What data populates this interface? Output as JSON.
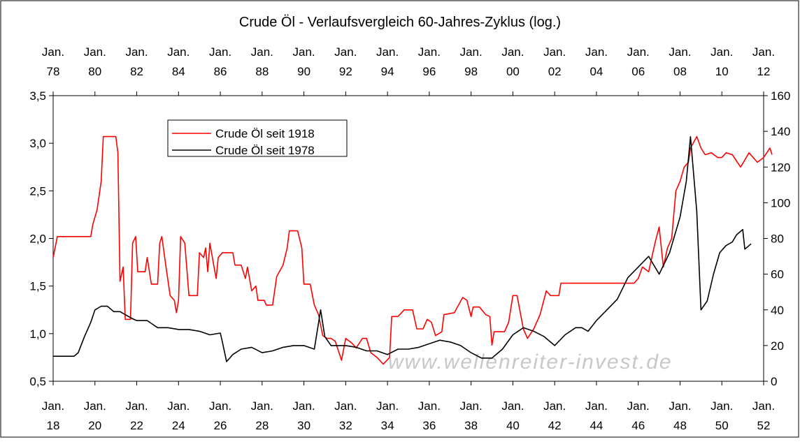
{
  "chart_data": {
    "type": "line",
    "title": "Crude Öl - Verlaufsvergleich 60-Jahres-Zyklus (log.)",
    "watermark": "www.wellenreiter-invest.de",
    "xlim": [
      1918,
      1952
    ],
    "xticks": [
      {
        "value": 1918,
        "label": "Jan. 18"
      },
      {
        "value": 1920,
        "label": "Jan. 20"
      },
      {
        "value": 1922,
        "label": "Jan. 22"
      },
      {
        "value": 1924,
        "label": "Jan. 24"
      },
      {
        "value": 1926,
        "label": "Jan. 26"
      },
      {
        "value": 1928,
        "label": "Jan. 28"
      },
      {
        "value": 1930,
        "label": "Jan. 30"
      },
      {
        "value": 1932,
        "label": "Jan. 32"
      },
      {
        "value": 1934,
        "label": "Jan. 34"
      },
      {
        "value": 1936,
        "label": "Jan. 36"
      },
      {
        "value": 1938,
        "label": "Jan. 38"
      },
      {
        "value": 1940,
        "label": "Jan. 40"
      },
      {
        "value": 1942,
        "label": "Jan. 42"
      },
      {
        "value": 1944,
        "label": "Jan. 44"
      },
      {
        "value": 1946,
        "label": "Jan. 46"
      },
      {
        "value": 1948,
        "label": "Jan. 48"
      },
      {
        "value": 1950,
        "label": "Jan. 50"
      },
      {
        "value": 1952,
        "label": "Jan. 52"
      }
    ],
    "x2lim": [
      1978,
      2012
    ],
    "x2ticks": [
      {
        "value": 1978,
        "label": "Jan. 78"
      },
      {
        "value": 1980,
        "label": "Jan. 80"
      },
      {
        "value": 1982,
        "label": "Jan. 82"
      },
      {
        "value": 1984,
        "label": "Jan. 84"
      },
      {
        "value": 1986,
        "label": "Jan. 86"
      },
      {
        "value": 1988,
        "label": "Jan. 88"
      },
      {
        "value": 1990,
        "label": "Jan. 90"
      },
      {
        "value": 1992,
        "label": "Jan. 92"
      },
      {
        "value": 1994,
        "label": "Jan. 94"
      },
      {
        "value": 1996,
        "label": "Jan. 96"
      },
      {
        "value": 1998,
        "label": "Jan. 98"
      },
      {
        "value": 2000,
        "label": "Jan. 00"
      },
      {
        "value": 2002,
        "label": "Jan. 02"
      },
      {
        "value": 2004,
        "label": "Jan. 04"
      },
      {
        "value": 2006,
        "label": "Jan. 06"
      },
      {
        "value": 2008,
        "label": "Jan. 08"
      },
      {
        "value": 2010,
        "label": "Jan. 10"
      },
      {
        "value": 2012,
        "label": "Jan. 12"
      }
    ],
    "ylim": [
      0.5,
      3.5
    ],
    "yticks": [
      {
        "value": 0.5,
        "label": "0,5"
      },
      {
        "value": 1.0,
        "label": "1,0"
      },
      {
        "value": 1.5,
        "label": "1,5"
      },
      {
        "value": 2.0,
        "label": "2,0"
      },
      {
        "value": 2.5,
        "label": "2,5"
      },
      {
        "value": 3.0,
        "label": "3,0"
      },
      {
        "value": 3.5,
        "label": "3,5"
      }
    ],
    "y2lim": [
      0,
      160
    ],
    "y2ticks": [
      0,
      20,
      40,
      60,
      80,
      100,
      120,
      140,
      160
    ],
    "legend": "upper left",
    "series": [
      {
        "name": "Crude Öl seit 1918",
        "color": "#ff0000",
        "x": [
          1918.0,
          1918.2,
          1919.8,
          1919.9,
          1920.1,
          1920.3,
          1920.4,
          1921.0,
          1921.1,
          1921.2,
          1921.35,
          1921.45,
          1921.7,
          1921.8,
          1921.95,
          1922.05,
          1922.4,
          1922.5,
          1922.7,
          1923.0,
          1923.1,
          1923.2,
          1923.4,
          1923.6,
          1923.8,
          1923.9,
          1924.0,
          1924.1,
          1924.3,
          1924.5,
          1924.9,
          1925.0,
          1925.2,
          1925.3,
          1925.4,
          1925.5,
          1925.7,
          1925.8,
          1925.9,
          1926.1,
          1926.6,
          1926.7,
          1927.0,
          1927.2,
          1927.3,
          1927.5,
          1927.7,
          1927.8,
          1928.1,
          1928.2,
          1928.5,
          1928.7,
          1929.0,
          1929.2,
          1929.3,
          1929.7,
          1929.9,
          1930.0,
          1930.3,
          1930.5,
          1930.7,
          1930.9,
          1931.1,
          1931.3,
          1931.5,
          1931.8,
          1932.0,
          1932.3,
          1932.5,
          1932.8,
          1933.0,
          1933.2,
          1933.5,
          1933.8,
          1934.1,
          1934.2,
          1934.5,
          1934.8,
          1935.2,
          1935.4,
          1935.7,
          1935.9,
          1936.1,
          1936.3,
          1936.6,
          1936.7,
          1937.2,
          1937.6,
          1937.8,
          1938.0,
          1938.1,
          1938.4,
          1938.7,
          1938.9,
          1939.0,
          1939.1,
          1939.6,
          1939.8,
          1940.0,
          1940.2,
          1940.5,
          1940.7,
          1941.0,
          1941.3,
          1941.6,
          1941.8,
          1942.2,
          1942.3,
          1945.8,
          1946.0,
          1946.2,
          1946.5,
          1946.8,
          1947.0,
          1947.2,
          1947.4,
          1947.6,
          1947.8,
          1948.0,
          1948.2,
          1948.4,
          1948.5,
          1948.8,
          1949.0,
          1949.2,
          1949.5,
          1949.8,
          1950.0,
          1950.2,
          1950.5,
          1950.9,
          1951.3,
          1951.7,
          1952.0,
          1952.3,
          1952.4
        ],
        "values": [
          1.8,
          2.02,
          2.02,
          2.15,
          2.3,
          2.6,
          3.07,
          3.07,
          2.9,
          1.55,
          1.7,
          1.15,
          1.15,
          1.95,
          2.02,
          1.65,
          1.65,
          1.8,
          1.52,
          1.52,
          1.95,
          2.02,
          1.7,
          1.4,
          1.35,
          1.22,
          1.35,
          2.02,
          1.95,
          1.4,
          1.4,
          1.85,
          1.8,
          1.9,
          1.65,
          1.95,
          1.7,
          1.58,
          1.8,
          1.85,
          1.85,
          1.72,
          1.72,
          1.58,
          1.7,
          1.45,
          1.5,
          1.35,
          1.35,
          1.3,
          1.3,
          1.6,
          1.72,
          1.9,
          2.08,
          2.08,
          1.9,
          1.52,
          1.52,
          1.3,
          1.2,
          0.98,
          0.95,
          0.95,
          0.92,
          0.72,
          0.95,
          0.9,
          0.85,
          0.95,
          0.95,
          0.8,
          0.75,
          0.68,
          0.75,
          1.18,
          1.18,
          1.25,
          1.25,
          1.05,
          1.05,
          1.15,
          1.12,
          0.98,
          1.02,
          1.2,
          1.22,
          1.38,
          1.35,
          1.18,
          1.28,
          1.28,
          1.2,
          1.18,
          0.88,
          1.02,
          1.02,
          1.12,
          1.4,
          1.4,
          1.05,
          0.95,
          1.05,
          1.2,
          1.45,
          1.4,
          1.4,
          1.53,
          1.53,
          1.58,
          1.7,
          1.65,
          1.95,
          2.12,
          1.7,
          1.9,
          2.0,
          2.5,
          2.6,
          2.75,
          2.8,
          2.95,
          3.07,
          2.95,
          2.88,
          2.9,
          2.85,
          2.85,
          2.9,
          2.88,
          2.75,
          2.9,
          2.8,
          2.85,
          2.95,
          2.88
        ]
      },
      {
        "name": "Crude Öl seit 1978",
        "color": "#000000",
        "axis": "y2",
        "xaxis": "x2",
        "x": [
          1978.0,
          1979.0,
          1979.2,
          1979.5,
          1979.8,
          1980.0,
          1980.3,
          1980.6,
          1980.9,
          1981.2,
          1981.5,
          1981.8,
          1982.0,
          1982.5,
          1983.0,
          1983.5,
          1984.0,
          1984.5,
          1985.0,
          1985.5,
          1986.0,
          1986.1,
          1986.3,
          1986.6,
          1987.0,
          1987.5,
          1988.0,
          1988.5,
          1989.0,
          1989.5,
          1990.0,
          1990.5,
          1990.8,
          1991.0,
          1991.3,
          1992.0,
          1992.5,
          1993.0,
          1993.5,
          1994.0,
          1994.5,
          1995.0,
          1995.5,
          1996.0,
          1996.5,
          1997.0,
          1997.5,
          1998.0,
          1998.5,
          1999.0,
          1999.5,
          2000.0,
          2000.5,
          2001.0,
          2001.5,
          2002.0,
          2002.5,
          2003.0,
          2003.3,
          2003.6,
          2004.0,
          2004.5,
          2005.0,
          2005.5,
          2006.0,
          2006.5,
          2007.0,
          2007.5,
          2008.0,
          2008.3,
          2008.5,
          2008.8,
          2009.0,
          2009.3,
          2009.6,
          2009.9,
          2010.2,
          2010.5,
          2010.7,
          2011.0,
          2011.1,
          2011.4
        ],
        "values": [
          14,
          14,
          16,
          25,
          33,
          40,
          42,
          42,
          39,
          39,
          37,
          35,
          34,
          34,
          30,
          30,
          29,
          29,
          28,
          26,
          27,
          22,
          11,
          15,
          18,
          19,
          16,
          17,
          19,
          20,
          20,
          18,
          40,
          25,
          20,
          20,
          19,
          17,
          17,
          15,
          18,
          18,
          19,
          21,
          23,
          22,
          20,
          16,
          13,
          13,
          18,
          26,
          30,
          28,
          25,
          20,
          26,
          30,
          30,
          28,
          34,
          40,
          46,
          58,
          64,
          70,
          60,
          72,
          92,
          112,
          137,
          95,
          40,
          45,
          60,
          72,
          76,
          78,
          82,
          85,
          74,
          77
        ]
      }
    ]
  }
}
